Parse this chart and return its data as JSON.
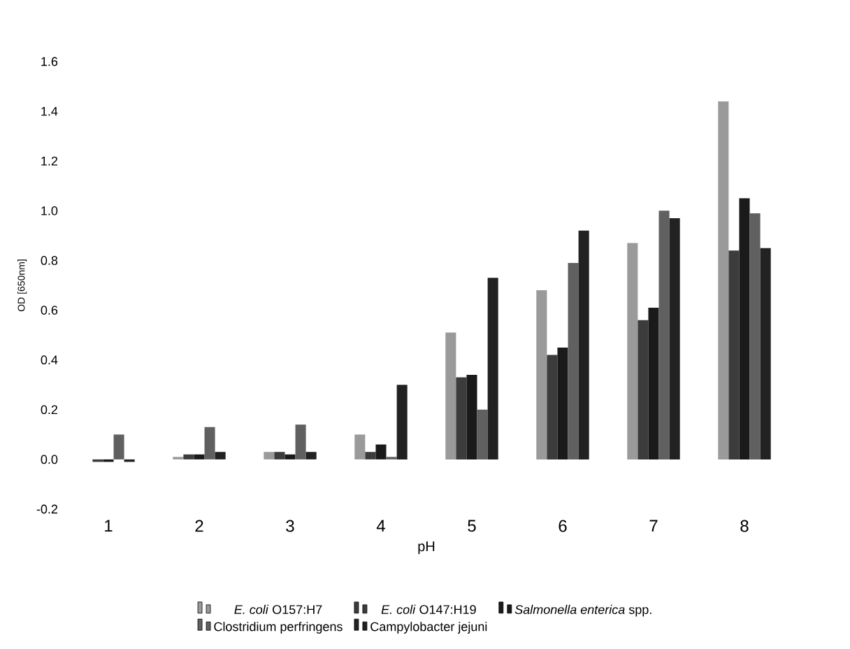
{
  "chart_data": {
    "type": "bar",
    "xlabel": "pH",
    "ylabel": "OD [650nm]",
    "categories": [
      "1",
      "2",
      "3",
      "4",
      "5",
      "6",
      "7",
      "8"
    ],
    "series": [
      {
        "name": "*E. coli* O157:H7",
        "color": "#9a9a9a",
        "values": [
          0,
          0.01,
          0.03,
          0.1,
          0.51,
          0.68,
          0.87,
          1.44
        ]
      },
      {
        "name": "*E. coli* O147:H19",
        "color": "#3c3c3c",
        "values": [
          -0.01,
          0.02,
          0.03,
          0.03,
          0.33,
          0.42,
          0.56,
          0.84
        ]
      },
      {
        "name": "*Salmonella enterica* spp.",
        "color": "#1a1a1a",
        "values": [
          -0.01,
          0.02,
          0.02,
          0.06,
          0.34,
          0.45,
          0.61,
          1.05
        ]
      },
      {
        "name": "Clostridium perfringens",
        "color": "#606060",
        "values": [
          0.1,
          0.13,
          0.14,
          0.01,
          0.2,
          0.79,
          1.0,
          0.99
        ]
      },
      {
        "name": "Campylobacter jejuni",
        "color": "#222222",
        "values": [
          -0.01,
          0.03,
          0.03,
          0.3,
          0.73,
          0.92,
          0.97,
          0.85
        ]
      }
    ],
    "ylim": [
      -0.2,
      1.6
    ],
    "yticks": [
      -0.2,
      {
        "value": 0,
        "label": "0.0"
      },
      0.2,
      0.4,
      0.6,
      0.8,
      {
        "value": 1,
        "label": "1.0"
      },
      1.2,
      1.4,
      1.6
    ],
    "legend": "bottom",
    "grid": false
  }
}
